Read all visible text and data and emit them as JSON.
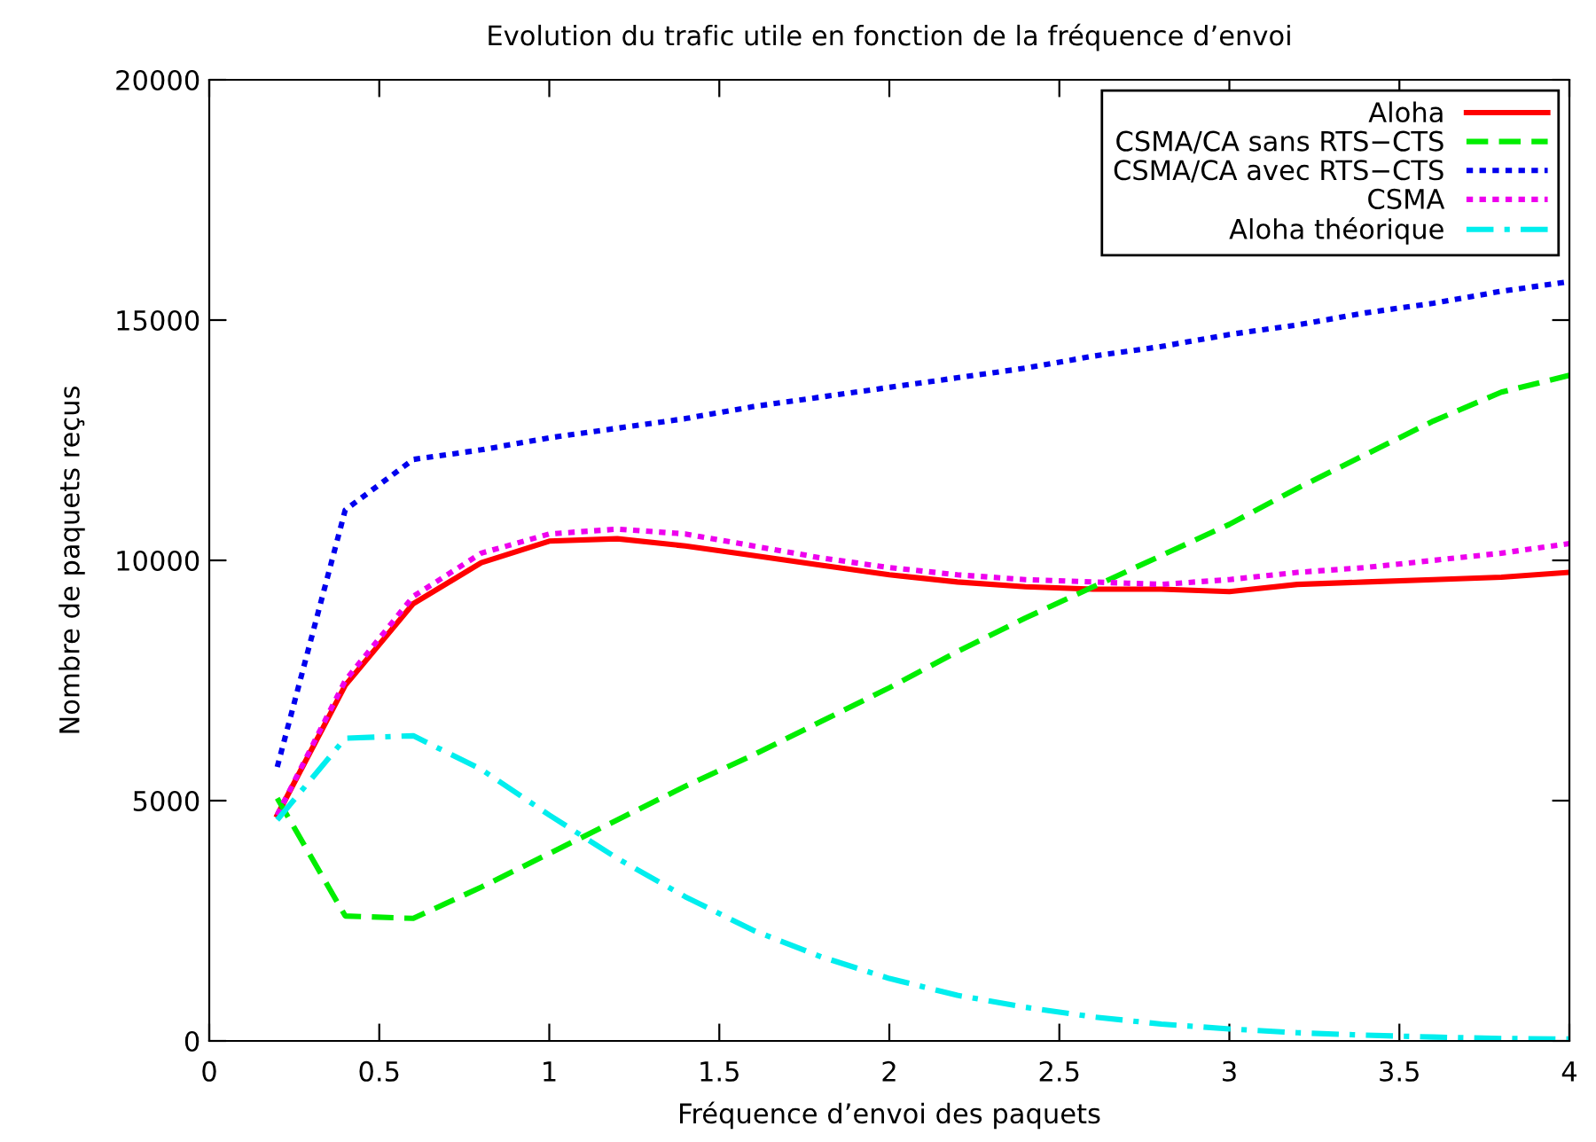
{
  "chart_data": {
    "type": "line",
    "title": "Evolution du trafic utile en fonction de la fréquence d’envoi",
    "xlabel": "Fréquence d’envoi des paquets",
    "ylabel": "Nombre de paquets reçus",
    "x": [
      0.2,
      0.4,
      0.6,
      0.8,
      1.0,
      1.2,
      1.4,
      1.6,
      1.8,
      2.0,
      2.2,
      2.4,
      2.6,
      2.8,
      3.0,
      3.2,
      3.4,
      3.6,
      3.8,
      4.0
    ],
    "xlim": [
      0,
      4
    ],
    "xticks": [
      0,
      0.5,
      1,
      1.5,
      2,
      2.5,
      3,
      3.5,
      4
    ],
    "ylim": [
      0,
      20000
    ],
    "yticks": [
      0,
      5000,
      10000,
      15000,
      20000
    ],
    "grid": false,
    "legend": "top right",
    "marker": "none",
    "series": [
      {
        "name": "Aloha",
        "color": "#ff0000",
        "line_style": "solid",
        "values": [
          4700,
          7400,
          9100,
          9950,
          10400,
          10450,
          10300,
          10100,
          9900,
          9700,
          9550,
          9450,
          9400,
          9400,
          9350,
          9500,
          9550,
          9600,
          9650,
          9750
        ]
      },
      {
        "name": "CSMA/CA sans RTS−CTS",
        "color": "#00ee00",
        "line_style": "dashed",
        "values": [
          5050,
          2600,
          2550,
          3200,
          3900,
          4600,
          5300,
          5950,
          6650,
          7350,
          8100,
          8800,
          9450,
          10100,
          10750,
          11500,
          12200,
          12900,
          13500,
          13850
        ]
      },
      {
        "name": "CSMA/CA avec RTS−CTS",
        "color": "#0000ee",
        "line_style": "dotted",
        "values": [
          5700,
          11050,
          12100,
          12300,
          12550,
          12750,
          12950,
          13200,
          13400,
          13600,
          13800,
          14000,
          14250,
          14450,
          14700,
          14900,
          15150,
          15350,
          15600,
          15800
        ]
      },
      {
        "name": "CSMA",
        "color": "#ee00ee",
        "line_style": "dotted",
        "values": [
          4700,
          7500,
          9250,
          10150,
          10550,
          10650,
          10550,
          10300,
          10050,
          9850,
          9700,
          9600,
          9550,
          9500,
          9600,
          9750,
          9850,
          10000,
          10150,
          10350
        ]
      },
      {
        "name": "Aloha théorique",
        "color": "#00eeee",
        "line_style": "dashdot",
        "values": [
          4600,
          6300,
          6350,
          5650,
          4700,
          3800,
          3000,
          2300,
          1750,
          1300,
          950,
          700,
          500,
          350,
          250,
          170,
          120,
          80,
          50,
          40
        ]
      }
    ]
  }
}
